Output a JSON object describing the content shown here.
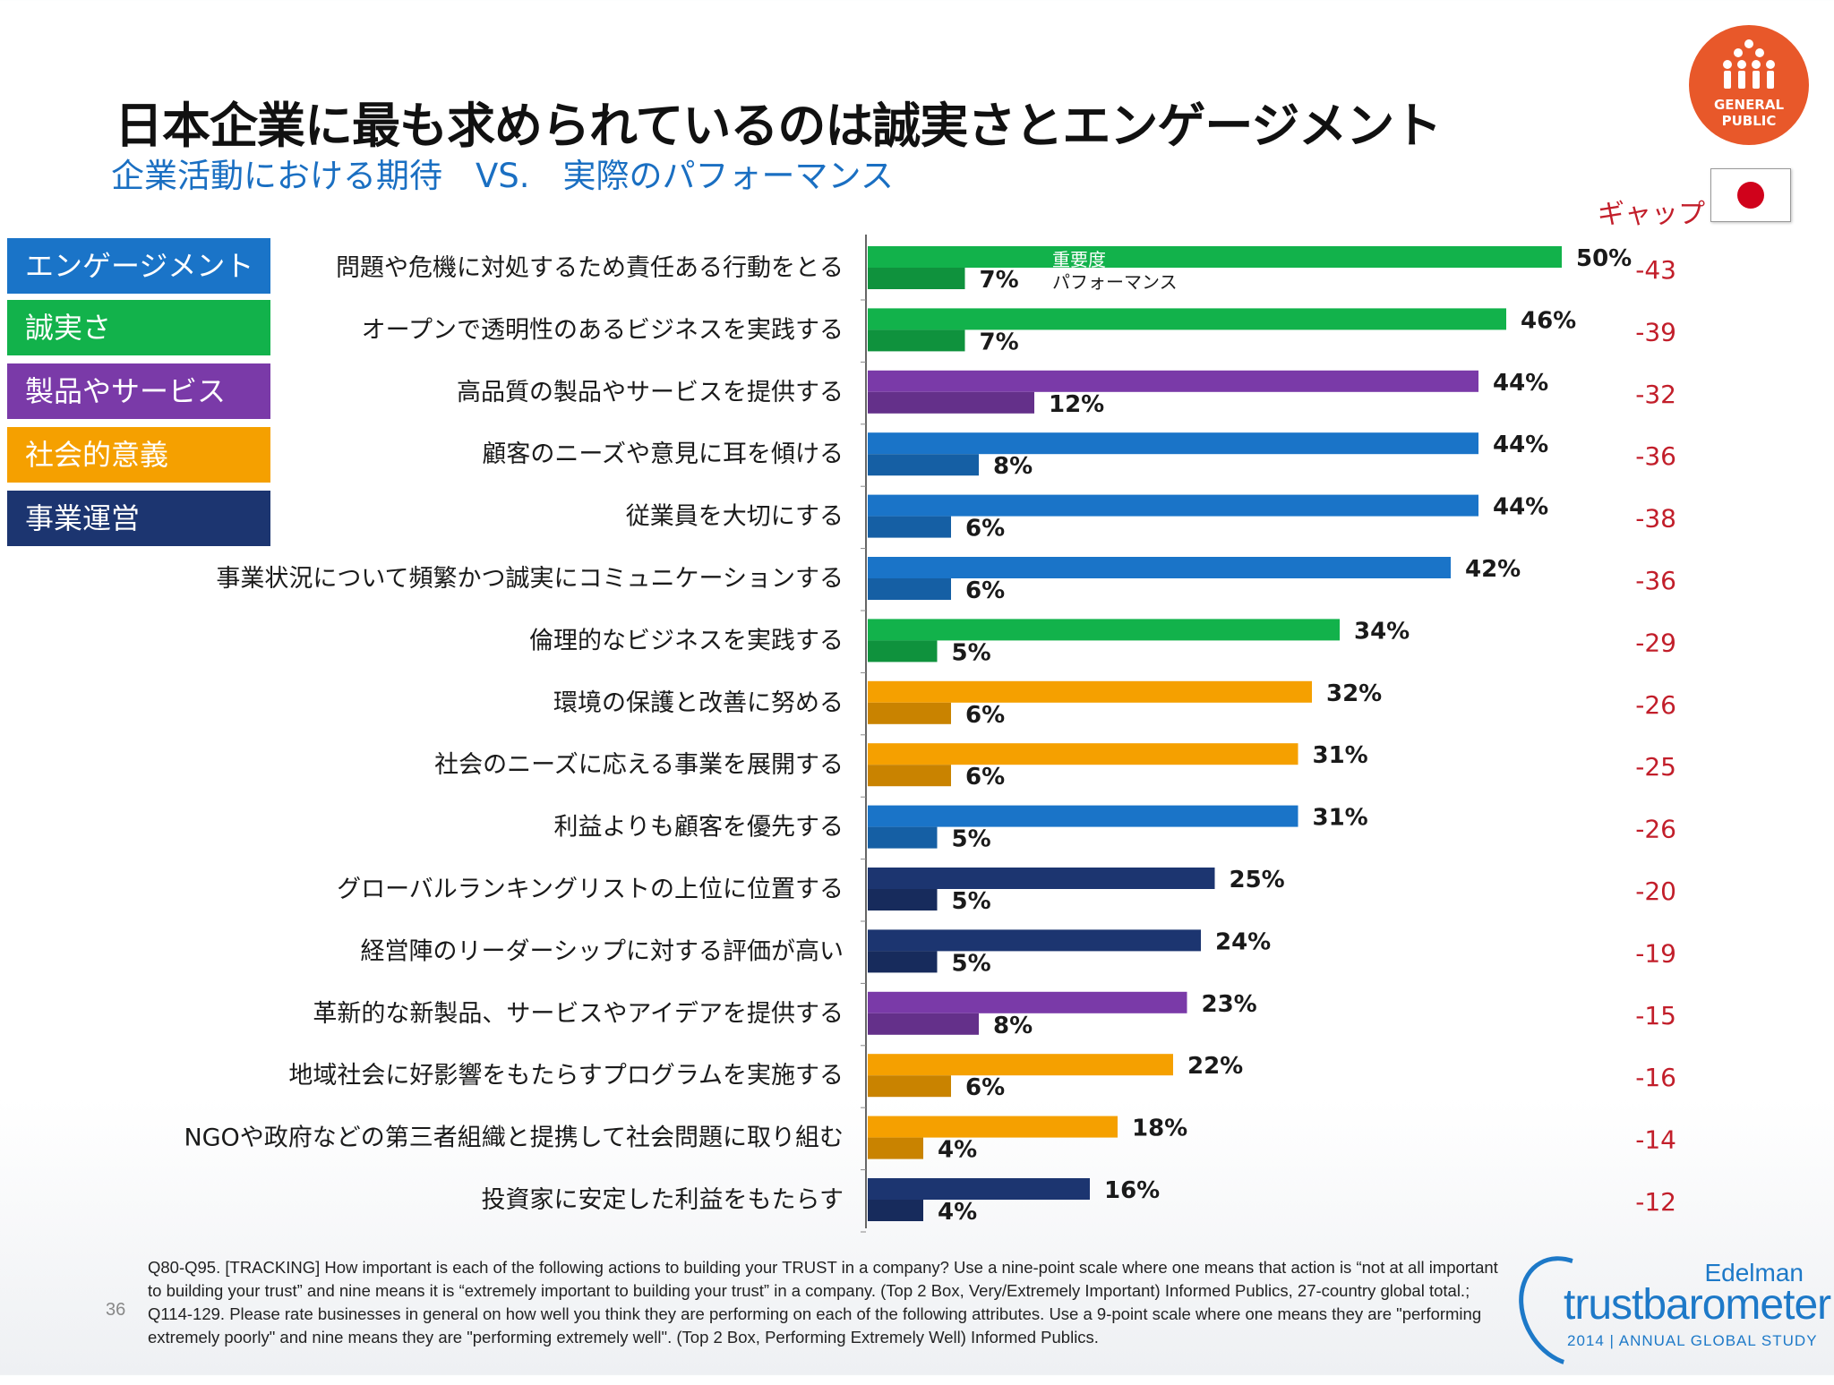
{
  "title": "日本企業に最も求められているのは誠実さとエンゲージメント",
  "subtitle": "企業活動における期待　VS.　実際のパフォーマンス",
  "badge": {
    "text": "GENERAL\nPUBLIC",
    "color": "#e8582a",
    "icon": "people-group-icon"
  },
  "gap_header": "ギャップ",
  "flag": "japan-flag-icon",
  "legend": [
    {
      "label": "エンゲージメント",
      "color": "#1a74c8"
    },
    {
      "label": "誠実さ",
      "color": "#12b24b"
    },
    {
      "label": "製品やサービス",
      "color": "#7a3aa8"
    },
    {
      "label": "社会的意義",
      "color": "#f5a000"
    },
    {
      "label": "事業運営",
      "color": "#1c3570"
    }
  ],
  "chart_data": {
    "type": "bar",
    "orientation": "horizontal",
    "series_labels": [
      "重要度",
      "パフォーマンス"
    ],
    "xlim": [
      0,
      100
    ],
    "gap_label": "ギャップ",
    "rows": [
      {
        "label": "問題や危機に対処するため責任ある行動をとる",
        "importance": 50,
        "performance": 7,
        "gap": -43,
        "category": "誠実さ"
      },
      {
        "label": "オープンで透明性のあるビジネスを実践する",
        "importance": 46,
        "performance": 7,
        "gap": -39,
        "category": "誠実さ"
      },
      {
        "label": "高品質の製品やサービスを提供する",
        "importance": 44,
        "performance": 12,
        "gap": -32,
        "category": "製品やサービス"
      },
      {
        "label": "顧客のニーズや意見に耳を傾ける",
        "importance": 44,
        "performance": 8,
        "gap": -36,
        "category": "エンゲージメント"
      },
      {
        "label": "従業員を大切にする",
        "importance": 44,
        "performance": 6,
        "gap": -38,
        "category": "エンゲージメント"
      },
      {
        "label": "事業状況について頻繁かつ誠実にコミュニケーションする",
        "importance": 42,
        "performance": 6,
        "gap": -36,
        "category": "エンゲージメント"
      },
      {
        "label": "倫理的なビジネスを実践する",
        "importance": 34,
        "performance": 5,
        "gap": -29,
        "category": "誠実さ"
      },
      {
        "label": "環境の保護と改善に努める",
        "importance": 32,
        "performance": 6,
        "gap": -26,
        "category": "社会的意義"
      },
      {
        "label": "社会のニーズに応える事業を展開する",
        "importance": 31,
        "performance": 6,
        "gap": -25,
        "category": "社会的意義"
      },
      {
        "label": "利益よりも顧客を優先する",
        "importance": 31,
        "performance": 5,
        "gap": -26,
        "category": "エンゲージメント"
      },
      {
        "label": "グローバルランキングリストの上位に位置する",
        "importance": 25,
        "performance": 5,
        "gap": -20,
        "category": "事業運営"
      },
      {
        "label": "経営陣のリーダーシップに対する評価が高い",
        "importance": 24,
        "performance": 5,
        "gap": -19,
        "category": "事業運営"
      },
      {
        "label": "革新的な新製品、サービスやアイデアを提供する",
        "importance": 23,
        "performance": 8,
        "gap": -15,
        "category": "製品やサービス"
      },
      {
        "label": "地域社会に好影響をもたらすプログラムを実施する",
        "importance": 22,
        "performance": 6,
        "gap": -16,
        "category": "社会的意義"
      },
      {
        "label": "NGOや政府などの第三者組織と提携して社会問題に取り組む",
        "importance": 18,
        "performance": 4,
        "gap": -14,
        "category": "社会的意義"
      },
      {
        "label": "投資家に安定した利益をもたらす",
        "importance": 16,
        "performance": 4,
        "gap": -12,
        "category": "事業運営"
      }
    ]
  },
  "footnote": "Q80-Q95. [TRACKING] How important is each of the following actions to building your TRUST in a company? Use a nine-point scale where one means that action is “not at all important to building your trust” and nine means it is “extremely important to building your trust” in a company. (Top 2 Box, Very/Extremely Important) Informed Publics, 27-country global total.; Q114-129. Please rate businesses in general on how well you think they are performing on each of the following attributes. Use a 9-point scale where one means they are \"performing extremely poorly\" and nine means they are \"performing extremely well\". (Top 2 Box, Performing Extremely Well) Informed Publics.",
  "page_number": "36",
  "logo": {
    "brand": "Edelman",
    "name": "trustbarometer",
    "tagline": "2014 | ANNUAL GLOBAL STUDY"
  }
}
